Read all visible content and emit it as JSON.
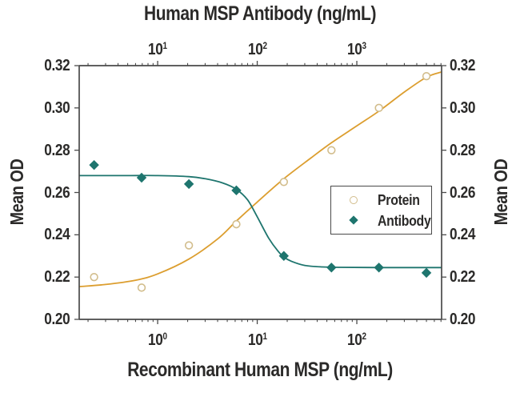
{
  "colors": {
    "background": "#ffffff",
    "axis": "#4a4a4a",
    "text": "#2b2a29",
    "protein_line": "#dc9e2f",
    "protein_marker": "#d2bd8c",
    "antibody": "#1e756e"
  },
  "top_axis": {
    "title": "Human MSP Antibody (ng/mL)",
    "ticks": [
      {
        "base": "10",
        "exp": "1",
        "value": 10
      },
      {
        "base": "10",
        "exp": "2",
        "value": 100
      },
      {
        "base": "10",
        "exp": "3",
        "value": 1000
      }
    ]
  },
  "bottom_axis": {
    "title": "Recombinant Human MSP (ng/mL)",
    "ticks": [
      {
        "base": "10",
        "exp": "0",
        "value": 1
      },
      {
        "base": "10",
        "exp": "1",
        "value": 10
      },
      {
        "base": "10",
        "exp": "2",
        "value": 100
      }
    ]
  },
  "left_axis": {
    "title": "Mean OD",
    "ticks": [
      {
        "label": "0.32",
        "value": 0.32
      },
      {
        "label": "0.30",
        "value": 0.3
      },
      {
        "label": "0.28",
        "value": 0.28
      },
      {
        "label": "0.26",
        "value": 0.26
      },
      {
        "label": "0.24",
        "value": 0.24
      },
      {
        "label": "0.22",
        "value": 0.22
      },
      {
        "label": "0.20",
        "value": 0.2
      }
    ]
  },
  "right_axis": {
    "title": "Mean OD",
    "ticks": [
      {
        "label": "0.32",
        "value": 0.32
      },
      {
        "label": "0.30",
        "value": 0.3
      },
      {
        "label": "0.28",
        "value": 0.28
      },
      {
        "label": "0.26",
        "value": 0.26
      },
      {
        "label": "0.24",
        "value": 0.24
      },
      {
        "label": "0.22",
        "value": 0.22
      },
      {
        "label": "0.20",
        "value": 0.2
      }
    ]
  },
  "legend": {
    "items": [
      {
        "label": "Protein",
        "marker": "open-circle",
        "color": "#d2bd8c"
      },
      {
        "label": "Antibody",
        "marker": "filled-diamond",
        "color": "#1e756e"
      }
    ]
  },
  "chart_data": {
    "type": "scatter",
    "x_scale": "log",
    "xlabel_bottom": "Recombinant Human MSP (ng/mL)",
    "xlabel_top": "Human MSP Antibody (ng/mL)",
    "ylabel_left": "Mean OD",
    "ylabel_right": "Mean OD",
    "ylim": [
      0.2,
      0.32
    ],
    "y_tick_step": 0.02,
    "xlim_bottom": [
      0.163,
      710
    ],
    "xlim_top": [
      1.63,
      7100
    ],
    "grid": false,
    "legend_position": "middle-right",
    "series": [
      {
        "name": "Protein",
        "x_axis": "bottom",
        "marker": "open-circle",
        "marker_color": "#d2bd8c",
        "line_color": "#dc9e2f",
        "x": [
          0.23,
          0.69,
          2.06,
          6.17,
          18.5,
          55.6,
          166.7,
          500
        ],
        "y": [
          0.22,
          0.215,
          0.235,
          0.245,
          0.265,
          0.28,
          0.3,
          0.315
        ],
        "fit_x": [
          0.163,
          0.3,
          0.6,
          1,
          2.06,
          4,
          6.17,
          10,
          18.5,
          35,
          55.6,
          100,
          166.7,
          300,
          500,
          710
        ],
        "fit_y": [
          0.2155,
          0.2165,
          0.2185,
          0.2215,
          0.2285,
          0.238,
          0.2465,
          0.2555,
          0.2665,
          0.2765,
          0.2835,
          0.2915,
          0.2985,
          0.3075,
          0.3145,
          0.317
        ]
      },
      {
        "name": "Antibody",
        "x_axis": "top",
        "marker": "filled-diamond",
        "marker_color": "#1e756e",
        "line_color": "#1e756e",
        "x": [
          2.3,
          6.9,
          20.6,
          61.7,
          185,
          556,
          1667,
          5000
        ],
        "y": [
          0.273,
          0.267,
          0.264,
          0.261,
          0.23,
          0.2245,
          0.2245,
          0.222
        ],
        "fit_x": [
          1.63,
          5,
          10,
          20.6,
          30,
          45,
          61.7,
          80,
          100,
          130,
          160,
          185,
          220,
          300,
          450,
          700,
          1667,
          4000,
          7100
        ],
        "fit_y": [
          0.268,
          0.268,
          0.268,
          0.2675,
          0.2665,
          0.2645,
          0.2615,
          0.2565,
          0.2485,
          0.2385,
          0.2325,
          0.2295,
          0.2275,
          0.2255,
          0.2248,
          0.2246,
          0.2245,
          0.2245,
          0.2245
        ]
      }
    ]
  }
}
